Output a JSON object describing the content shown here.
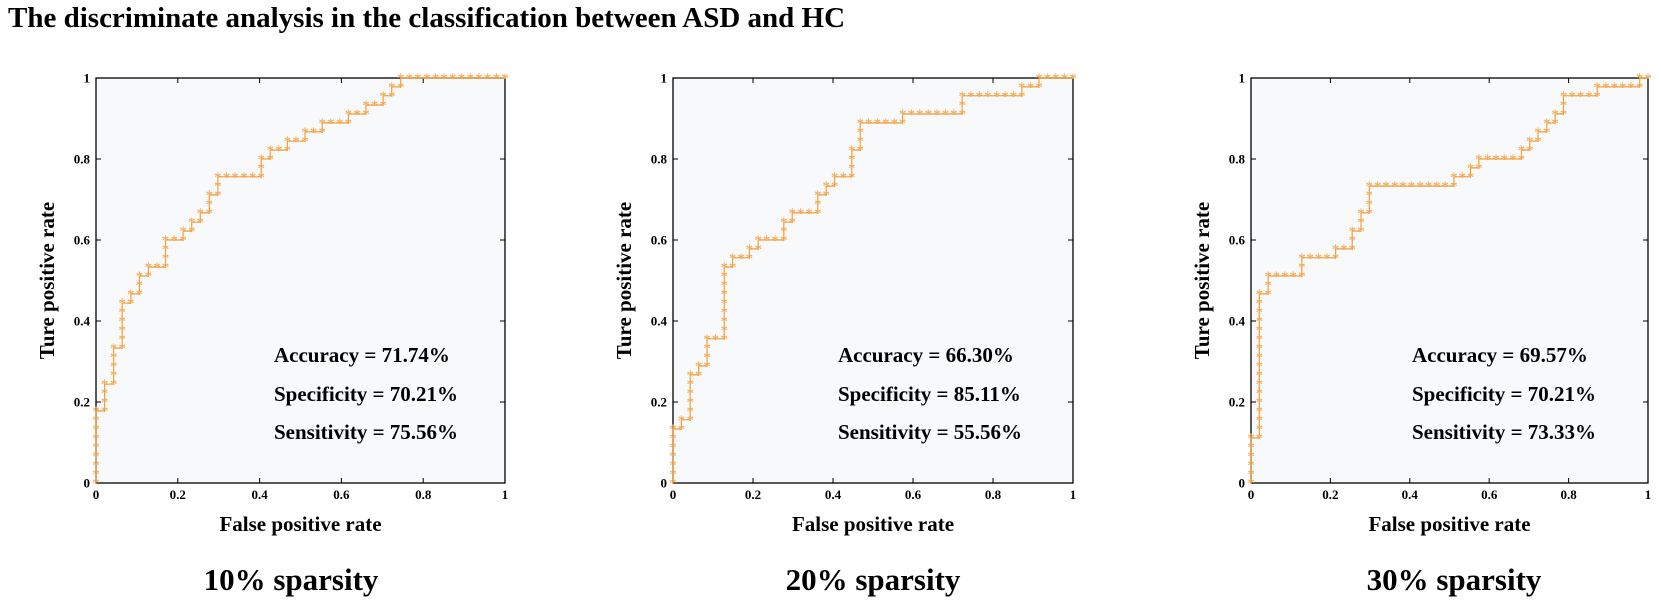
{
  "title": "The discriminate analysis in the classification between ASD and HC",
  "colors": {
    "marker": "#F5A040",
    "plot_bg": "#F7F9FB",
    "axis": "#000000"
  },
  "chart_data": [
    {
      "type": "line",
      "caption": "10% sparsity",
      "xlabel": "False positive rate",
      "ylabel": "Ture positive rate",
      "xlim": [
        0,
        1
      ],
      "ylim": [
        0,
        1
      ],
      "xticks": [
        "0",
        "0.2",
        "0.4",
        "0.6",
        "0.8",
        "1"
      ],
      "yticks": [
        "0",
        "0.2",
        "0.4",
        "0.6",
        "0.8",
        "1"
      ],
      "marker": "*",
      "stats": [
        "Accuracy = 71.74%",
        "Specificity = 70.21%",
        "Sensitivity = 75.56%"
      ],
      "points": [
        [
          0,
          0
        ],
        [
          0,
          0.022
        ],
        [
          0,
          0.044
        ],
        [
          0,
          0.067
        ],
        [
          0,
          0.089
        ],
        [
          0,
          0.111
        ],
        [
          0,
          0.133
        ],
        [
          0,
          0.156
        ],
        [
          0,
          0.178
        ],
        [
          0.021,
          0.178
        ],
        [
          0.021,
          0.2
        ],
        [
          0.021,
          0.222
        ],
        [
          0.021,
          0.244
        ],
        [
          0.043,
          0.244
        ],
        [
          0.043,
          0.267
        ],
        [
          0.043,
          0.289
        ],
        [
          0.043,
          0.311
        ],
        [
          0.043,
          0.333
        ],
        [
          0.064,
          0.333
        ],
        [
          0.064,
          0.356
        ],
        [
          0.064,
          0.378
        ],
        [
          0.064,
          0.4
        ],
        [
          0.064,
          0.422
        ],
        [
          0.064,
          0.444
        ],
        [
          0.085,
          0.444
        ],
        [
          0.085,
          0.467
        ],
        [
          0.106,
          0.467
        ],
        [
          0.106,
          0.489
        ],
        [
          0.106,
          0.511
        ],
        [
          0.128,
          0.511
        ],
        [
          0.128,
          0.533
        ],
        [
          0.149,
          0.533
        ],
        [
          0.17,
          0.533
        ],
        [
          0.17,
          0.556
        ],
        [
          0.17,
          0.578
        ],
        [
          0.17,
          0.6
        ],
        [
          0.191,
          0.6
        ],
        [
          0.213,
          0.6
        ],
        [
          0.213,
          0.622
        ],
        [
          0.234,
          0.622
        ],
        [
          0.234,
          0.644
        ],
        [
          0.255,
          0.644
        ],
        [
          0.255,
          0.667
        ],
        [
          0.277,
          0.667
        ],
        [
          0.277,
          0.689
        ],
        [
          0.277,
          0.711
        ],
        [
          0.298,
          0.711
        ],
        [
          0.298,
          0.733
        ],
        [
          0.298,
          0.756
        ],
        [
          0.319,
          0.756
        ],
        [
          0.34,
          0.756
        ],
        [
          0.362,
          0.756
        ],
        [
          0.383,
          0.756
        ],
        [
          0.404,
          0.756
        ],
        [
          0.404,
          0.778
        ],
        [
          0.404,
          0.8
        ],
        [
          0.426,
          0.8
        ],
        [
          0.426,
          0.822
        ],
        [
          0.447,
          0.822
        ],
        [
          0.468,
          0.822
        ],
        [
          0.468,
          0.844
        ],
        [
          0.489,
          0.844
        ],
        [
          0.511,
          0.844
        ],
        [
          0.511,
          0.867
        ],
        [
          0.532,
          0.867
        ],
        [
          0.553,
          0.867
        ],
        [
          0.553,
          0.889
        ],
        [
          0.574,
          0.889
        ],
        [
          0.596,
          0.889
        ],
        [
          0.617,
          0.889
        ],
        [
          0.617,
          0.911
        ],
        [
          0.638,
          0.911
        ],
        [
          0.66,
          0.911
        ],
        [
          0.66,
          0.933
        ],
        [
          0.681,
          0.933
        ],
        [
          0.702,
          0.933
        ],
        [
          0.702,
          0.956
        ],
        [
          0.723,
          0.956
        ],
        [
          0.723,
          0.978
        ],
        [
          0.745,
          0.978
        ],
        [
          0.745,
          1
        ],
        [
          0.766,
          1
        ],
        [
          0.787,
          1
        ],
        [
          0.809,
          1
        ],
        [
          0.83,
          1
        ],
        [
          0.851,
          1
        ],
        [
          0.872,
          1
        ],
        [
          0.894,
          1
        ],
        [
          0.915,
          1
        ],
        [
          0.936,
          1
        ],
        [
          0.957,
          1
        ],
        [
          0.979,
          1
        ],
        [
          1,
          1
        ]
      ]
    },
    {
      "type": "line",
      "caption": "20% sparsity",
      "xlabel": "False positive rate",
      "ylabel": "Ture positive rate",
      "xlim": [
        0,
        1
      ],
      "ylim": [
        0,
        1
      ],
      "xticks": [
        "0",
        "0.2",
        "0.4",
        "0.6",
        "0.8",
        "1"
      ],
      "yticks": [
        "0",
        "0.2",
        "0.4",
        "0.6",
        "0.8",
        "1"
      ],
      "marker": "*",
      "stats": [
        "Accuracy = 66.30%",
        "Specificity = 85.11%",
        "Sensitivity = 55.56%"
      ],
      "points": [
        [
          0,
          0
        ],
        [
          0,
          0.022
        ],
        [
          0,
          0.044
        ],
        [
          0,
          0.067
        ],
        [
          0,
          0.089
        ],
        [
          0,
          0.111
        ],
        [
          0,
          0.133
        ],
        [
          0.021,
          0.133
        ],
        [
          0.021,
          0.156
        ],
        [
          0.043,
          0.156
        ],
        [
          0.043,
          0.178
        ],
        [
          0.043,
          0.2
        ],
        [
          0.043,
          0.222
        ],
        [
          0.043,
          0.244
        ],
        [
          0.043,
          0.267
        ],
        [
          0.064,
          0.267
        ],
        [
          0.064,
          0.289
        ],
        [
          0.085,
          0.289
        ],
        [
          0.085,
          0.311
        ],
        [
          0.085,
          0.333
        ],
        [
          0.085,
          0.356
        ],
        [
          0.106,
          0.356
        ],
        [
          0.128,
          0.356
        ],
        [
          0.128,
          0.378
        ],
        [
          0.128,
          0.4
        ],
        [
          0.128,
          0.422
        ],
        [
          0.128,
          0.444
        ],
        [
          0.128,
          0.467
        ],
        [
          0.128,
          0.489
        ],
        [
          0.128,
          0.511
        ],
        [
          0.128,
          0.533
        ],
        [
          0.149,
          0.533
        ],
        [
          0.149,
          0.556
        ],
        [
          0.17,
          0.556
        ],
        [
          0.191,
          0.556
        ],
        [
          0.191,
          0.578
        ],
        [
          0.213,
          0.578
        ],
        [
          0.213,
          0.6
        ],
        [
          0.234,
          0.6
        ],
        [
          0.255,
          0.6
        ],
        [
          0.277,
          0.6
        ],
        [
          0.277,
          0.622
        ],
        [
          0.277,
          0.644
        ],
        [
          0.298,
          0.644
        ],
        [
          0.298,
          0.667
        ],
        [
          0.319,
          0.667
        ],
        [
          0.34,
          0.667
        ],
        [
          0.362,
          0.667
        ],
        [
          0.362,
          0.689
        ],
        [
          0.362,
          0.711
        ],
        [
          0.383,
          0.711
        ],
        [
          0.383,
          0.733
        ],
        [
          0.404,
          0.733
        ],
        [
          0.404,
          0.756
        ],
        [
          0.426,
          0.756
        ],
        [
          0.447,
          0.756
        ],
        [
          0.447,
          0.778
        ],
        [
          0.447,
          0.8
        ],
        [
          0.447,
          0.822
        ],
        [
          0.468,
          0.822
        ],
        [
          0.468,
          0.844
        ],
        [
          0.468,
          0.867
        ],
        [
          0.468,
          0.889
        ],
        [
          0.489,
          0.889
        ],
        [
          0.511,
          0.889
        ],
        [
          0.532,
          0.889
        ],
        [
          0.553,
          0.889
        ],
        [
          0.574,
          0.889
        ],
        [
          0.574,
          0.911
        ],
        [
          0.596,
          0.911
        ],
        [
          0.617,
          0.911
        ],
        [
          0.638,
          0.911
        ],
        [
          0.66,
          0.911
        ],
        [
          0.681,
          0.911
        ],
        [
          0.702,
          0.911
        ],
        [
          0.723,
          0.911
        ],
        [
          0.723,
          0.933
        ],
        [
          0.723,
          0.956
        ],
        [
          0.745,
          0.956
        ],
        [
          0.766,
          0.956
        ],
        [
          0.787,
          0.956
        ],
        [
          0.809,
          0.956
        ],
        [
          0.83,
          0.956
        ],
        [
          0.851,
          0.956
        ],
        [
          0.872,
          0.956
        ],
        [
          0.872,
          0.978
        ],
        [
          0.894,
          0.978
        ],
        [
          0.915,
          0.978
        ],
        [
          0.915,
          1
        ],
        [
          0.936,
          1
        ],
        [
          0.957,
          1
        ],
        [
          0.979,
          1
        ],
        [
          1,
          1
        ]
      ]
    },
    {
      "type": "line",
      "caption": "30% sparsity",
      "xlabel": "False positive rate",
      "ylabel": "Ture positive rate",
      "xlim": [
        0,
        1
      ],
      "ylim": [
        0,
        1
      ],
      "xticks": [
        "0",
        "0.2",
        "0.4",
        "0.6",
        "0.8",
        "1"
      ],
      "yticks": [
        "0",
        "0.2",
        "0.4",
        "0.6",
        "0.8",
        "1"
      ],
      "marker": "*",
      "stats": [
        "Accuracy = 69.57%",
        "Specificity = 70.21%",
        "Sensitivity = 73.33%"
      ],
      "points": [
        [
          0,
          0
        ],
        [
          0,
          0.022
        ],
        [
          0,
          0.044
        ],
        [
          0,
          0.067
        ],
        [
          0,
          0.089
        ],
        [
          0,
          0.111
        ],
        [
          0.021,
          0.111
        ],
        [
          0.021,
          0.133
        ],
        [
          0.021,
          0.156
        ],
        [
          0.021,
          0.178
        ],
        [
          0.021,
          0.2
        ],
        [
          0.021,
          0.222
        ],
        [
          0.021,
          0.244
        ],
        [
          0.021,
          0.267
        ],
        [
          0.021,
          0.289
        ],
        [
          0.021,
          0.311
        ],
        [
          0.021,
          0.333
        ],
        [
          0.021,
          0.356
        ],
        [
          0.021,
          0.378
        ],
        [
          0.021,
          0.4
        ],
        [
          0.021,
          0.422
        ],
        [
          0.021,
          0.444
        ],
        [
          0.021,
          0.467
        ],
        [
          0.043,
          0.467
        ],
        [
          0.043,
          0.489
        ],
        [
          0.043,
          0.511
        ],
        [
          0.064,
          0.511
        ],
        [
          0.085,
          0.511
        ],
        [
          0.106,
          0.511
        ],
        [
          0.128,
          0.511
        ],
        [
          0.128,
          0.533
        ],
        [
          0.128,
          0.556
        ],
        [
          0.149,
          0.556
        ],
        [
          0.17,
          0.556
        ],
        [
          0.191,
          0.556
        ],
        [
          0.213,
          0.556
        ],
        [
          0.213,
          0.578
        ],
        [
          0.234,
          0.578
        ],
        [
          0.255,
          0.578
        ],
        [
          0.255,
          0.6
        ],
        [
          0.255,
          0.622
        ],
        [
          0.277,
          0.622
        ],
        [
          0.277,
          0.644
        ],
        [
          0.277,
          0.667
        ],
        [
          0.298,
          0.667
        ],
        [
          0.298,
          0.689
        ],
        [
          0.298,
          0.711
        ],
        [
          0.298,
          0.733
        ],
        [
          0.319,
          0.733
        ],
        [
          0.34,
          0.733
        ],
        [
          0.362,
          0.733
        ],
        [
          0.383,
          0.733
        ],
        [
          0.404,
          0.733
        ],
        [
          0.426,
          0.733
        ],
        [
          0.447,
          0.733
        ],
        [
          0.468,
          0.733
        ],
        [
          0.489,
          0.733
        ],
        [
          0.511,
          0.733
        ],
        [
          0.511,
          0.756
        ],
        [
          0.532,
          0.756
        ],
        [
          0.553,
          0.756
        ],
        [
          0.553,
          0.778
        ],
        [
          0.574,
          0.778
        ],
        [
          0.574,
          0.8
        ],
        [
          0.596,
          0.8
        ],
        [
          0.617,
          0.8
        ],
        [
          0.638,
          0.8
        ],
        [
          0.66,
          0.8
        ],
        [
          0.681,
          0.8
        ],
        [
          0.681,
          0.822
        ],
        [
          0.702,
          0.822
        ],
        [
          0.702,
          0.844
        ],
        [
          0.723,
          0.844
        ],
        [
          0.723,
          0.867
        ],
        [
          0.745,
          0.867
        ],
        [
          0.745,
          0.889
        ],
        [
          0.766,
          0.889
        ],
        [
          0.766,
          0.911
        ],
        [
          0.787,
          0.911
        ],
        [
          0.787,
          0.933
        ],
        [
          0.787,
          0.956
        ],
        [
          0.809,
          0.956
        ],
        [
          0.83,
          0.956
        ],
        [
          0.851,
          0.956
        ],
        [
          0.872,
          0.956
        ],
        [
          0.872,
          0.978
        ],
        [
          0.894,
          0.978
        ],
        [
          0.915,
          0.978
        ],
        [
          0.936,
          0.978
        ],
        [
          0.957,
          0.978
        ],
        [
          0.979,
          0.978
        ],
        [
          0.979,
          1
        ],
        [
          1,
          1
        ]
      ]
    }
  ]
}
